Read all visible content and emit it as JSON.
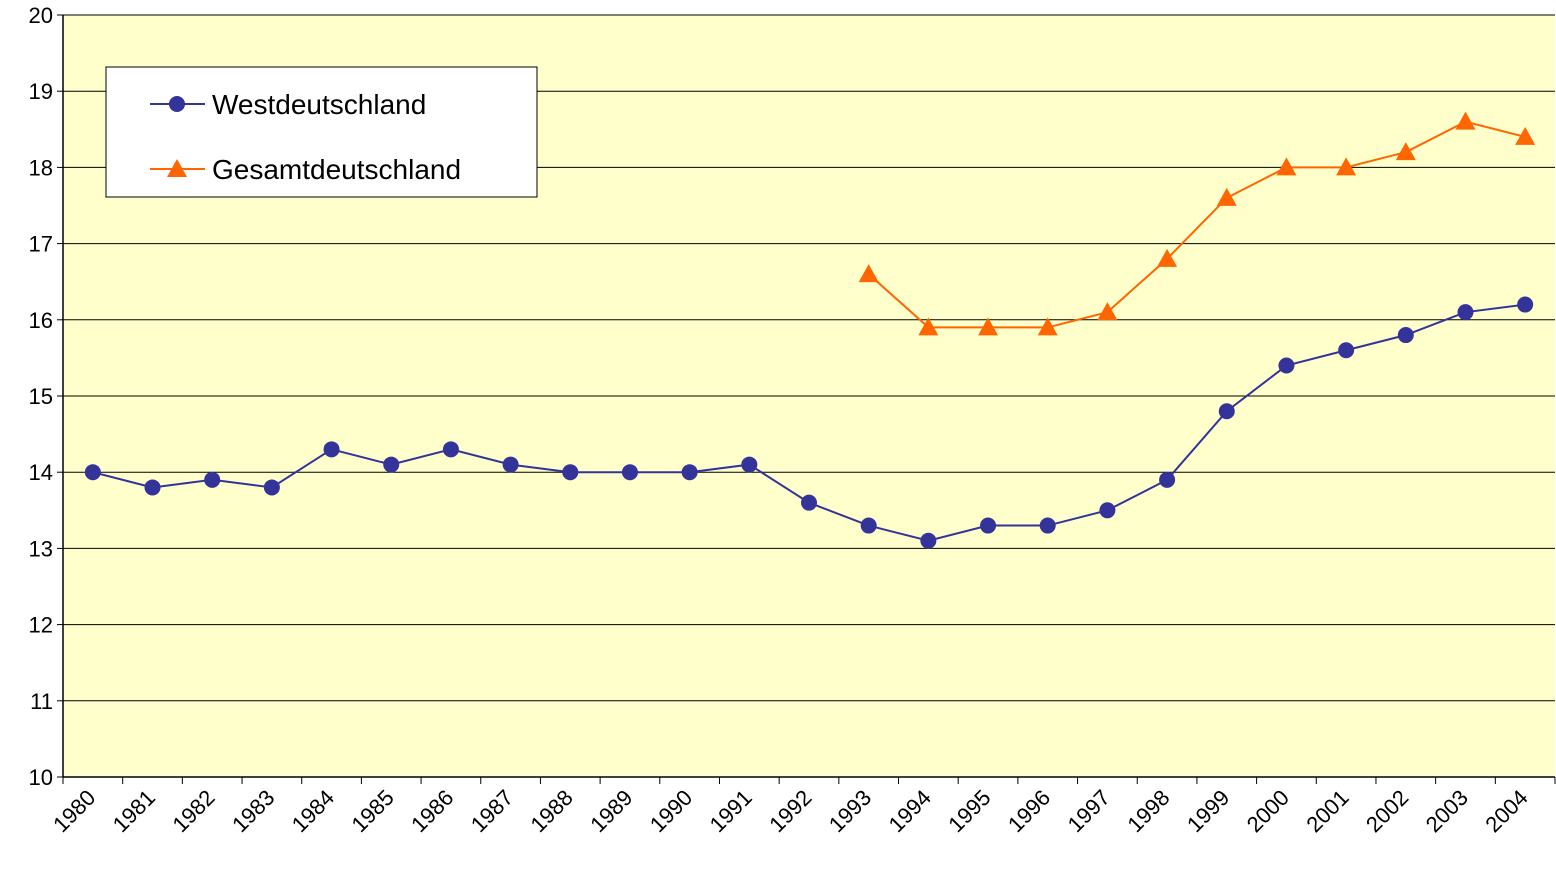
{
  "chart_data": {
    "type": "line",
    "categories": [
      "1980",
      "1981",
      "1982",
      "1983",
      "1984",
      "1985",
      "1986",
      "1987",
      "1988",
      "1989",
      "1990",
      "1991",
      "1992",
      "1993",
      "1994",
      "1995",
      "1996",
      "1997",
      "1998",
      "1999",
      "2000",
      "2001",
      "2002",
      "2003",
      "2004"
    ],
    "series": [
      {
        "name": "Westdeutschland",
        "color": "#333399",
        "marker": "circle",
        "values": [
          14.0,
          13.8,
          13.9,
          13.8,
          14.3,
          14.1,
          14.3,
          14.1,
          14.0,
          14.0,
          14.0,
          14.1,
          13.6,
          13.3,
          13.1,
          13.3,
          13.3,
          13.5,
          13.9,
          14.8,
          15.4,
          15.6,
          15.8,
          16.1,
          16.2
        ]
      },
      {
        "name": "Gesamtdeutschland",
        "color": "#ff6600",
        "marker": "triangle",
        "values": [
          null,
          null,
          null,
          null,
          null,
          null,
          null,
          null,
          null,
          null,
          null,
          null,
          null,
          16.6,
          15.9,
          15.9,
          15.9,
          16.1,
          16.8,
          17.6,
          18.0,
          18.0,
          18.2,
          18.6,
          18.4
        ]
      }
    ],
    "ylim": [
      10,
      20
    ],
    "yticks": [
      10,
      11,
      12,
      13,
      14,
      15,
      16,
      17,
      18,
      19,
      20
    ],
    "grid": true,
    "legend": "upper left",
    "background": "#ffffcc"
  }
}
